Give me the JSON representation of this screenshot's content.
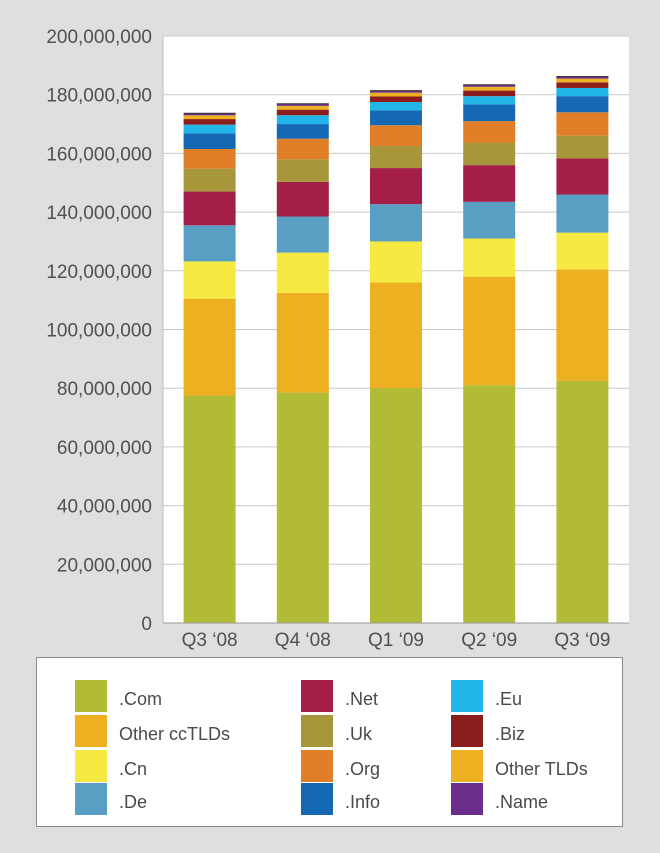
{
  "chart_data": {
    "type": "bar",
    "stacked": true,
    "categories": [
      "Q3 ‘08",
      "Q4 ‘08",
      "Q1 ‘09",
      "Q2 ‘09",
      "Q3 ‘09"
    ],
    "ylim": [
      0,
      200000000
    ],
    "yticks": [
      0,
      20000000,
      40000000,
      60000000,
      80000000,
      100000000,
      120000000,
      140000000,
      160000000,
      180000000,
      200000000
    ],
    "ytick_labels": [
      "0",
      "20,000,000",
      "40,000,000",
      "60,000,000",
      "80,000,000",
      "100,000,000",
      "120,000,000",
      "140,000,000",
      "160,000,000",
      "180,000,000",
      "200,000,000"
    ],
    "grid": true,
    "legend_position": "bottom",
    "series": [
      {
        "name": ".Com",
        "color": "#b2bb36",
        "values": [
          77500000,
          78500000,
          80000000,
          81000000,
          82500000
        ]
      },
      {
        "name": "Other ccTLDs",
        "color": "#ecb021",
        "values": [
          33000000,
          34000000,
          36000000,
          37000000,
          38000000
        ]
      },
      {
        "name": ".Cn",
        "color": "#f6ea42",
        "values": [
          12700000,
          13700000,
          14000000,
          13000000,
          12500000
        ]
      },
      {
        "name": ".De",
        "color": "#599fc3",
        "values": [
          12300000,
          12300000,
          12700000,
          12500000,
          13000000
        ]
      },
      {
        "name": ".Net",
        "color": "#a31f48",
        "values": [
          11500000,
          11800000,
          12300000,
          12500000,
          12300000
        ]
      },
      {
        "name": ".Uk",
        "color": "#a8973a",
        "values": [
          7800000,
          7700000,
          7500000,
          7700000,
          7700000
        ]
      },
      {
        "name": ".Org",
        "color": "#e07f28",
        "values": [
          6700000,
          7000000,
          7100000,
          7300000,
          8000000
        ]
      },
      {
        "name": ".Info",
        "color": "#1569b4",
        "values": [
          5300000,
          5000000,
          5100000,
          5700000,
          5500000
        ]
      },
      {
        "name": ".Eu",
        "color": "#22b6e8",
        "values": [
          3000000,
          3000000,
          2800000,
          2800000,
          2800000
        ]
      },
      {
        "name": ".Biz",
        "color": "#8c1d1d",
        "values": [
          1900000,
          1900000,
          1900000,
          1900000,
          1900000
        ]
      },
      {
        "name": "Other TLDs",
        "color": "#ecb021",
        "values": [
          1300000,
          1300000,
          1300000,
          1300000,
          1300000
        ]
      },
      {
        "name": ".Name",
        "color": "#6a2d8c",
        "values": [
          700000,
          700000,
          700000,
          700000,
          700000
        ]
      }
    ]
  }
}
